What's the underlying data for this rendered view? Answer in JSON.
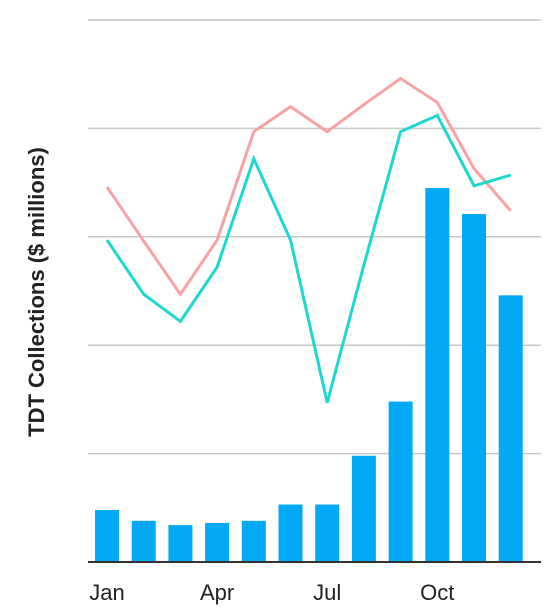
{
  "chart_data": {
    "type": "bar",
    "title": "",
    "xlabel": "",
    "ylabel": "TDT Collections ($ millions)",
    "grid": true,
    "ylim": [
      0,
      5
    ],
    "x_tick_labels": [
      "Jan",
      "Apr",
      "Jul",
      "Oct"
    ],
    "categories": [
      "1",
      "2",
      "3",
      "4",
      "5",
      "6",
      "7",
      "8",
      "9",
      "10",
      "11",
      "12"
    ],
    "series": [
      {
        "kind": "bar",
        "color": "#03a9f4",
        "values": [
          0.48,
          0.38,
          0.34,
          0.36,
          0.38,
          0.53,
          0.53,
          0.98,
          1.48,
          3.45,
          3.21,
          2.46
        ]
      },
      {
        "kind": "line",
        "color": "#f7a3a3",
        "values": [
          3.46,
          2.96,
          2.47,
          2.97,
          3.97,
          4.2,
          3.97,
          4.22,
          4.46,
          4.24,
          3.63,
          3.24
        ]
      },
      {
        "kind": "line",
        "color": "#1ed8d0",
        "values": [
          2.97,
          2.47,
          2.22,
          2.72,
          3.72,
          2.97,
          1.47,
          2.74,
          3.97,
          4.12,
          3.47,
          3.57
        ]
      }
    ]
  }
}
